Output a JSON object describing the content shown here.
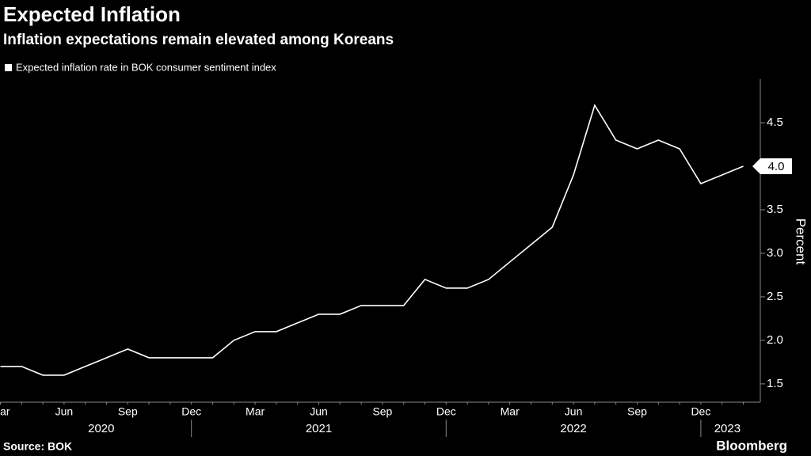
{
  "chart_data": {
    "type": "line",
    "title": "Expected Inflation",
    "subtitle": "Inflation expectations remain elevated among Koreans",
    "y_label": "Percent",
    "source": "Source: BOK",
    "brand": "Bloomberg",
    "categories": [
      "Mar",
      null,
      null,
      "Jun",
      null,
      null,
      "Sep",
      null,
      null,
      "Dec",
      null,
      null,
      "Mar",
      null,
      null,
      "Jun",
      null,
      null,
      "Sep",
      null,
      null,
      "Dec",
      null,
      null,
      "Mar",
      null,
      null,
      "Jun",
      null,
      null,
      "Sep",
      null,
      null,
      "Dec",
      null,
      null
    ],
    "years": [
      "2020",
      "2021",
      "2022",
      "2023"
    ],
    "series": [
      {
        "name": "Expected inflation rate in BOK consumer sentiment index",
        "color": "#ffffff",
        "values": [
          1.7,
          1.7,
          1.6,
          1.6,
          1.7,
          1.8,
          1.9,
          1.8,
          1.8,
          1.8,
          1.8,
          2.0,
          2.1,
          2.1,
          2.2,
          2.3,
          2.3,
          2.4,
          2.4,
          2.4,
          2.7,
          2.6,
          2.6,
          2.7,
          2.9,
          3.1,
          3.3,
          3.9,
          4.7,
          4.3,
          4.2,
          4.3,
          4.2,
          3.8,
          3.9,
          4.0
        ],
        "value_labels": [
          null,
          null,
          null,
          null,
          null,
          null,
          null,
          null,
          null,
          null,
          null,
          null,
          null,
          null,
          null,
          null,
          null,
          null,
          null,
          null,
          null,
          null,
          null,
          null,
          null,
          null,
          null,
          null,
          null,
          null,
          null,
          null,
          null,
          null,
          null,
          "4.0"
        ]
      }
    ],
    "ylim": [
      1.29,
      5.0
    ],
    "yticks": [
      1.5,
      {
        "value": 2,
        "label": "2.0"
      },
      2.5,
      {
        "value": 3,
        "label": "3.0"
      },
      3.5,
      {
        "value": 4,
        "label": "4.0"
      },
      4.5
    ],
    "grid": false
  }
}
